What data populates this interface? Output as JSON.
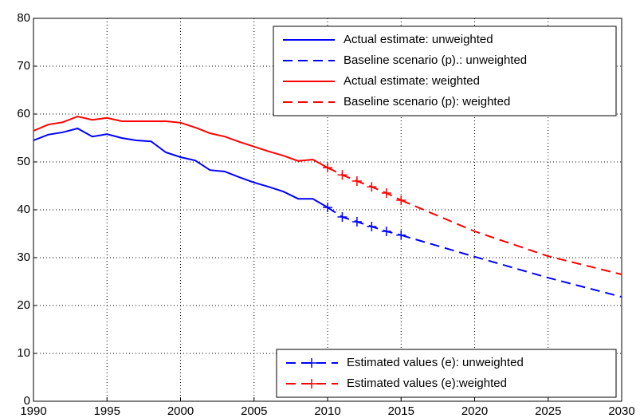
{
  "chart_data": {
    "type": "line",
    "xlim": [
      1990,
      2030
    ],
    "xticks": [
      1990,
      1995,
      2000,
      2005,
      2010,
      2015,
      2020,
      2025,
      2030
    ],
    "ylim": [
      0,
      80
    ],
    "yticks": [
      0,
      10,
      20,
      30,
      40,
      50,
      60,
      70,
      80
    ],
    "grid": true,
    "series": [
      {
        "name": "Actual estimate: unweighted",
        "color": "#0000ff",
        "style": "solid",
        "legend": "upper right",
        "x": [
          1990,
          1991,
          1992,
          1993,
          1994,
          1995,
          1996,
          1997,
          1998,
          1999,
          2000,
          2001,
          2002,
          2003,
          2004,
          2005,
          2006,
          2007,
          2008,
          2009,
          2010
        ],
        "values": [
          54.5,
          55.7,
          56.2,
          57.0,
          55.3,
          55.8,
          55.0,
          54.5,
          54.3,
          52.0,
          51.0,
          50.3,
          48.3,
          48.0,
          46.8,
          45.7,
          44.8,
          43.8,
          42.3,
          42.3,
          40.5
        ]
      },
      {
        "name": "Baseline scenario (p).: unweighted",
        "color": "#0000ff",
        "style": "dashed",
        "legend": "upper right",
        "x": [
          2015,
          2020,
          2025,
          2030
        ],
        "values": [
          34.7,
          30.2,
          25.8,
          21.8
        ]
      },
      {
        "name": "Actual estimate: weighted",
        "color": "#ff0000",
        "style": "solid",
        "legend": "upper right",
        "x": [
          1990,
          1991,
          1992,
          1993,
          1994,
          1995,
          1996,
          1997,
          1998,
          1999,
          2000,
          2001,
          2002,
          2003,
          2004,
          2005,
          2006,
          2007,
          2008,
          2009,
          2010
        ],
        "values": [
          56.5,
          57.8,
          58.3,
          59.5,
          58.8,
          59.2,
          58.5,
          58.5,
          58.5,
          58.5,
          58.2,
          57.2,
          56.0,
          55.3,
          54.2,
          53.2,
          52.2,
          51.3,
          50.2,
          50.5,
          48.8
        ]
      },
      {
        "name": "Baseline scenario (p): weighted",
        "color": "#ff0000",
        "style": "dashed",
        "legend": "upper right",
        "x": [
          2015,
          2020,
          2025,
          2030
        ],
        "values": [
          42.0,
          35.5,
          30.3,
          26.5
        ]
      },
      {
        "name": "Estimated values (e): unweighted",
        "color": "#0000ff",
        "style": "dashed",
        "marker": "+",
        "legend": "lower right",
        "x": [
          2010,
          2011,
          2012,
          2013,
          2014,
          2015
        ],
        "values": [
          40.5,
          38.5,
          37.5,
          36.5,
          35.5,
          34.7
        ]
      },
      {
        "name": "Estimated values (e):weighted",
        "color": "#ff0000",
        "style": "dashed",
        "marker": "+",
        "legend": "lower right",
        "x": [
          2010,
          2011,
          2012,
          2013,
          2014,
          2015
        ],
        "values": [
          48.8,
          47.3,
          46.0,
          44.8,
          43.5,
          42.0
        ]
      }
    ]
  }
}
